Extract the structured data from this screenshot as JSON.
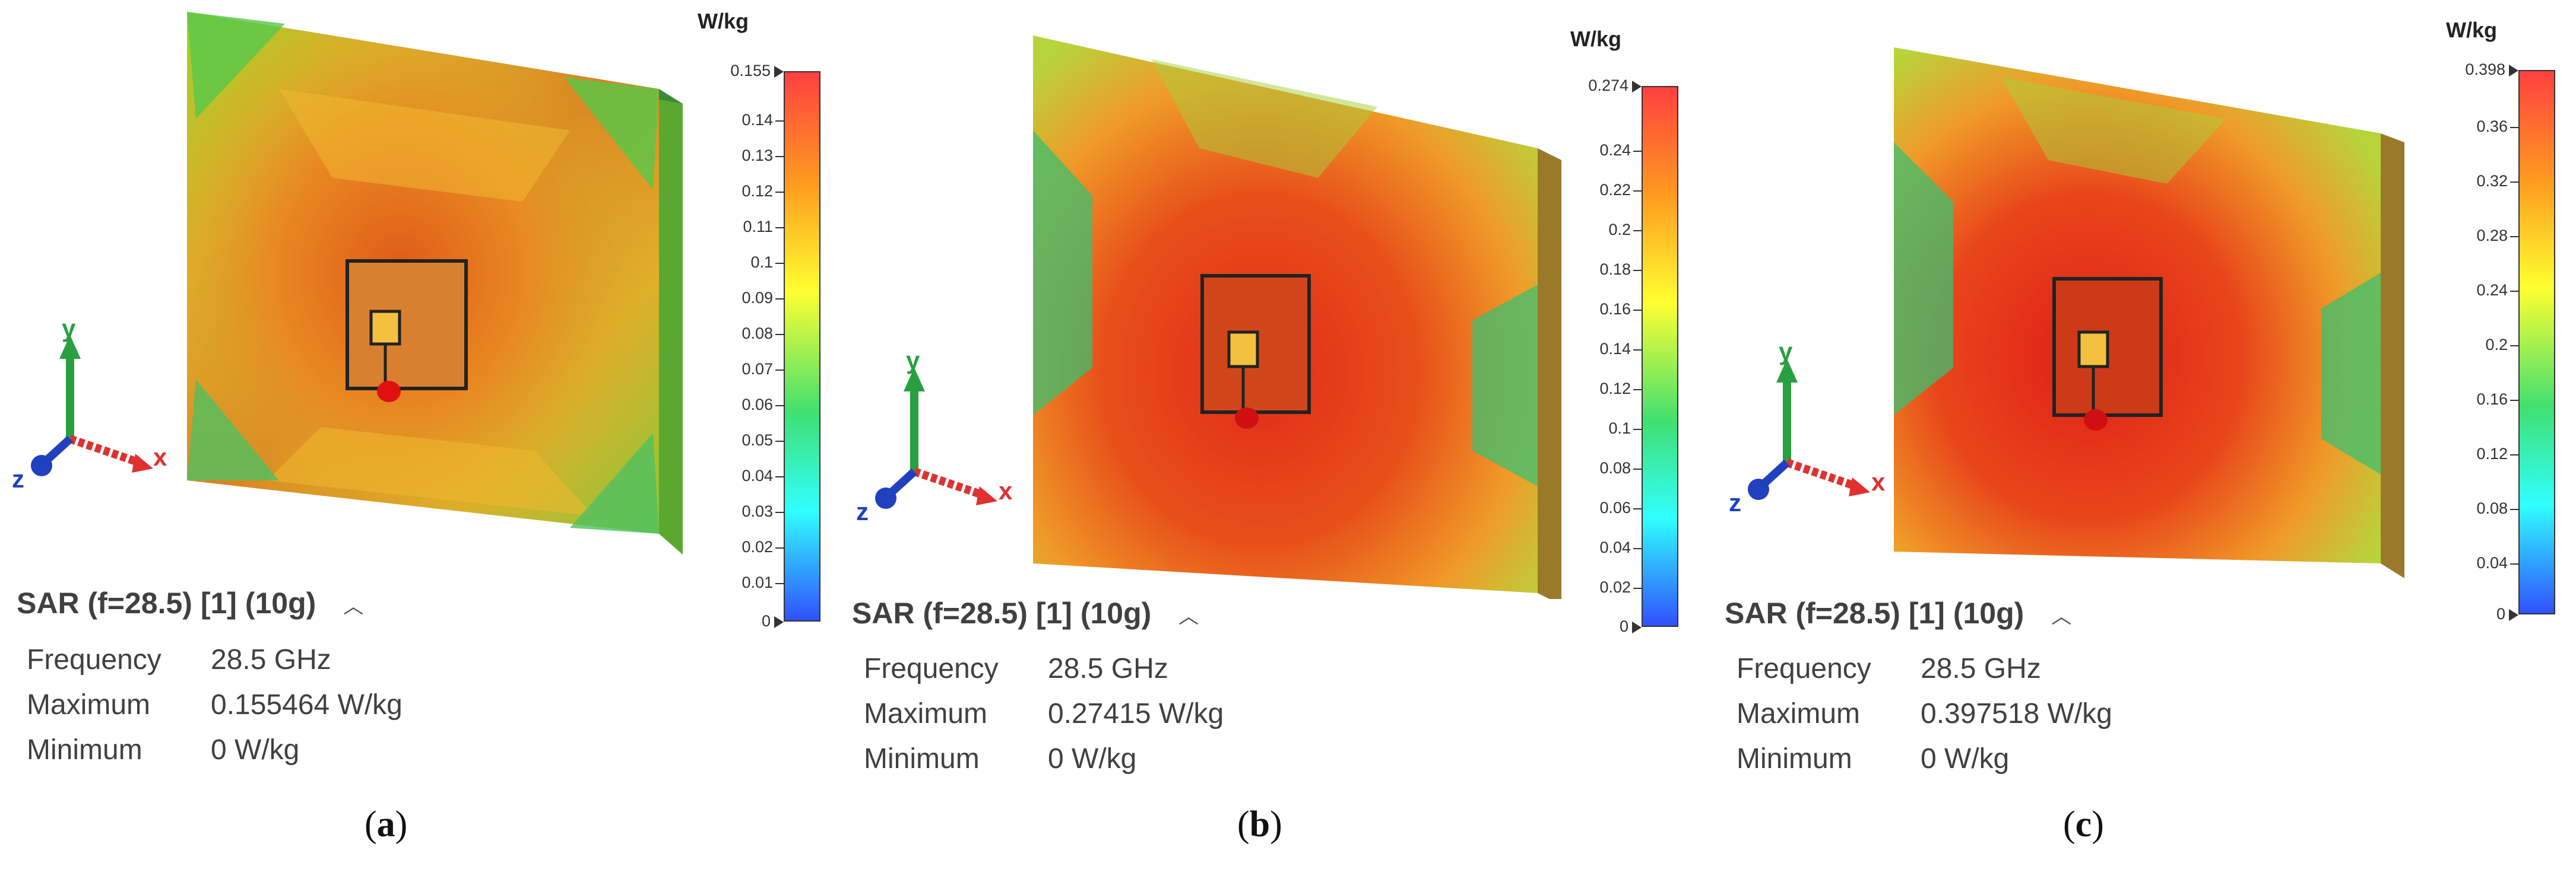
{
  "panels": [
    {
      "caption_letter": "a",
      "unit": "W/kg",
      "ticks": [
        "0.155",
        "0.14",
        "0.13",
        "0.12",
        "0.11",
        "0.1",
        "0.09",
        "0.08",
        "0.07",
        "0.06",
        "0.05",
        "0.04",
        "0.03",
        "0.02",
        "0.01",
        "0"
      ],
      "title": "SAR (f=28.5) [1] (10g)",
      "rows": [
        {
          "key": "Frequency",
          "value": "28.5 GHz"
        },
        {
          "key": "Maximum",
          "value": "0.155464 W/kg"
        },
        {
          "key": "Minimum",
          "value": "0 W/kg"
        }
      ]
    },
    {
      "caption_letter": "b",
      "unit": "W/kg",
      "ticks": [
        "0.274",
        "0.24",
        "0.22",
        "0.2",
        "0.18",
        "0.16",
        "0.14",
        "0.12",
        "0.1",
        "0.08",
        "0.06",
        "0.04",
        "0.02",
        "0"
      ],
      "title": "SAR (f=28.5) [1] (10g)",
      "rows": [
        {
          "key": "Frequency",
          "value": "28.5 GHz"
        },
        {
          "key": "Maximum",
          "value": "0.27415 W/kg"
        },
        {
          "key": "Minimum",
          "value": "0 W/kg"
        }
      ]
    },
    {
      "caption_letter": "c",
      "unit": "W/kg",
      "ticks": [
        "0.398",
        "0.36",
        "0.32",
        "0.28",
        "0.24",
        "0.2",
        "0.16",
        "0.12",
        "0.08",
        "0.04",
        "0"
      ],
      "title": "SAR (f=28.5) [1] (10g)",
      "rows": [
        {
          "key": "Frequency",
          "value": "28.5 GHz"
        },
        {
          "key": "Maximum",
          "value": "0.397518 W/kg"
        },
        {
          "key": "Minimum",
          "value": "0 W/kg"
        }
      ]
    }
  ],
  "axes": {
    "x": "x",
    "y": "y",
    "z": "z"
  },
  "caption_open": "(",
  "caption_close": ")",
  "icons": {
    "collapse": "chevron-up-icon",
    "tick_marker": "triangle-right-icon"
  },
  "colors": {
    "max": "#ff4040",
    "high": "#ff9a20",
    "mid": "#ffff30",
    "low_mid": "#40e070",
    "low": "#30ffff",
    "min": "#3050ff"
  }
}
